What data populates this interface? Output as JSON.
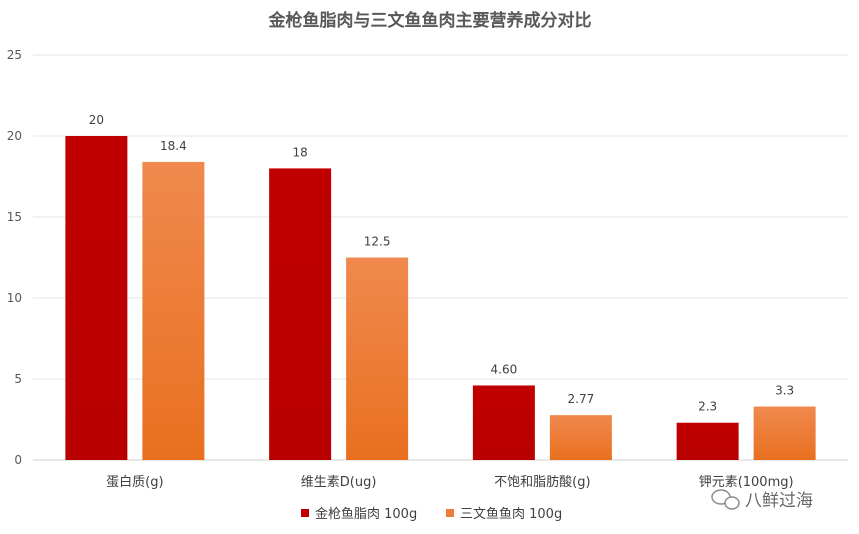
{
  "chart_data": {
    "type": "bar",
    "title": "金枪鱼脂肉与三文鱼鱼肉主要营养成分对比",
    "categories": [
      "蛋白质(g)",
      "维生素D(ug)",
      "不饱和脂肪酸(g)",
      "钾元素(100mg)"
    ],
    "series": [
      {
        "name": "金枪鱼脂肉 100g",
        "values": [
          20,
          18,
          4.6,
          2.3
        ],
        "labels": [
          "20",
          "18",
          "4.60",
          "2.3"
        ]
      },
      {
        "name": "三文鱼鱼肉 100g",
        "values": [
          18.4,
          12.5,
          2.77,
          3.3
        ],
        "labels": [
          "18.4",
          "12.5",
          "2.77",
          "3.3"
        ]
      }
    ],
    "ylim": [
      0,
      25
    ],
    "yticks": [
      0,
      5,
      10,
      15,
      20,
      25
    ],
    "grid": true,
    "legend": "bottom",
    "colors": [
      "#c00000",
      "#ed7d31"
    ]
  },
  "watermark": "八鲜过海"
}
